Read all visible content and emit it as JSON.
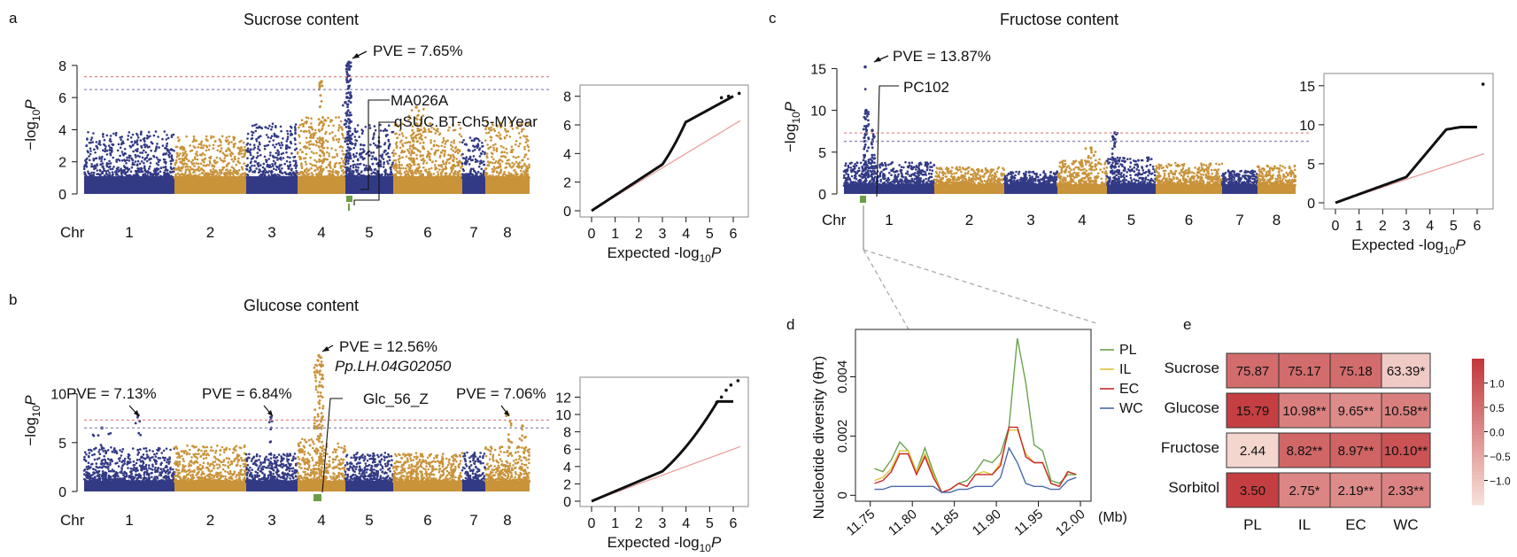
{
  "colors": {
    "navy": "#333a85",
    "gold": "#c9933a",
    "red_line": "#e48a8a",
    "blue_line": "#8a8ab8",
    "green": "#6a9e45",
    "qq_ref": "#e8a0a0"
  },
  "panels": {
    "a": {
      "letter": "a",
      "title": "Sucrose content",
      "pve_main": "PVE = 7.65%",
      "label_marker": "MA026A",
      "label_qtl": "qSUC.BT-Ch5-MYear"
    },
    "b": {
      "letter": "b",
      "title": "Glucose content",
      "pve_main": "PVE = 12.56%",
      "gene": "Pp.LH.04G02050",
      "label_marker": "Glc_56_Z",
      "pve_chr1": "PVE = 7.13%",
      "pve_chr3": "PVE = 6.84%",
      "pve_chr8": "PVE = 7.06%"
    },
    "c": {
      "letter": "c",
      "title": "Fructose content",
      "pve_main": "PVE = 13.87%",
      "label_marker": "PC102"
    },
    "d": {
      "letter": "d"
    },
    "e": {
      "letter": "e"
    }
  },
  "axis_text": {
    "chr": "Chr",
    "ylabel_prefix": "−log",
    "ylabel_sub": "10",
    "ylabel_p": "P",
    "qq_xlabel_prefix": "Expected -log",
    "qq_xlabel_sub": "10",
    "qq_xlabel_p": "P"
  },
  "chart_data": [
    {
      "id": "manhattan_sucrose",
      "type": "scatter",
      "title": "Sucrose content",
      "xlabel": "Chr",
      "ylabel": "−log10P",
      "chromosomes": [
        "1",
        "2",
        "3",
        "4",
        "5",
        "6",
        "7",
        "8"
      ],
      "ylim": [
        0,
        8.6
      ],
      "yticks": [
        0,
        2,
        4,
        6,
        8
      ],
      "thresholds": [
        7.3,
        6.5
      ],
      "peak": {
        "chr": "5",
        "value": 8.2,
        "pve": "PVE = 7.65%"
      }
    },
    {
      "id": "qq_sucrose",
      "type": "line",
      "xlim": [
        0,
        6.3
      ],
      "ylim": [
        0,
        8.6
      ],
      "xticks": [
        0,
        1,
        2,
        3,
        4,
        5,
        6
      ],
      "yticks": [
        0,
        2,
        4,
        6,
        8
      ],
      "max_observed": 8.2,
      "xlabel": "Expected -log10P"
    },
    {
      "id": "manhattan_glucose",
      "type": "scatter",
      "title": "Glucose content",
      "xlabel": "Chr",
      "ylabel": "−log10P",
      "chromosomes": [
        "1",
        "2",
        "3",
        "4",
        "5",
        "6",
        "7",
        "8"
      ],
      "ylim": [
        0,
        14.5
      ],
      "yticks": [
        0,
        5,
        10
      ],
      "thresholds": [
        7.3,
        6.5
      ],
      "peak": {
        "chr": "4",
        "value": 13.9,
        "pve": "PVE = 12.56%"
      },
      "secondary_peaks": [
        {
          "chr": "1",
          "value": 7.8
        },
        {
          "chr": "3",
          "value": 7.6
        },
        {
          "chr": "8",
          "value": 7.9
        }
      ]
    },
    {
      "id": "qq_glucose",
      "type": "line",
      "xlim": [
        0,
        6.3
      ],
      "ylim": [
        0,
        14.5
      ],
      "xticks": [
        0,
        1,
        2,
        3,
        4,
        5,
        6
      ],
      "yticks": [
        0,
        2,
        4,
        6,
        8,
        10,
        12
      ],
      "max_observed": 14,
      "xlabel": "Expected -log10P"
    },
    {
      "id": "manhattan_fructose",
      "type": "scatter",
      "title": "Fructose content",
      "xlabel": "Chr",
      "ylabel": "−log10P",
      "chromosomes": [
        "1",
        "2",
        "3",
        "4",
        "5",
        "6",
        "7",
        "8"
      ],
      "ylim": [
        0,
        16
      ],
      "yticks": [
        0,
        5,
        10,
        15
      ],
      "thresholds": [
        7.3,
        6.3
      ],
      "peak": {
        "chr": "1",
        "value": 15.2,
        "pve": "PVE = 13.87%"
      }
    },
    {
      "id": "qq_fructose",
      "type": "line",
      "xlim": [
        0,
        6.3
      ],
      "ylim": [
        0,
        16
      ],
      "xticks": [
        0,
        1,
        2,
        3,
        4,
        5,
        6
      ],
      "yticks": [
        0,
        5,
        10,
        15
      ],
      "max_observed": 15.2,
      "xlabel": "Expected -log10P"
    },
    {
      "id": "nucleotide_diversity",
      "type": "line",
      "xlabel": "(Mb)",
      "ylabel": "Nucleotide diversity (θπ)",
      "x": [
        11.755,
        11.765,
        11.775,
        11.785,
        11.795,
        11.805,
        11.815,
        11.825,
        11.835,
        11.845,
        11.855,
        11.865,
        11.875,
        11.885,
        11.895,
        11.905,
        11.915,
        11.925,
        11.935,
        11.945,
        11.955,
        11.965,
        11.975,
        11.985,
        11.995
      ],
      "xticks": [
        "11.75",
        "11.80",
        "11.85",
        "11.90",
        "11.95",
        "12.00"
      ],
      "xlim": [
        11.745,
        12.0
      ],
      "yticks": [
        "0",
        "0.002",
        "0.004"
      ],
      "ylim": [
        -0.0002,
        0.0056
      ],
      "series": [
        {
          "name": "PL",
          "color": "#6aa24f",
          "values": [
            0.0009,
            0.0008,
            0.0012,
            0.0018,
            0.0015,
            0.0008,
            0.0016,
            0.0008,
            0.0001,
            0.0002,
            0.0004,
            0.0005,
            0.0008,
            0.0012,
            0.0011,
            0.0014,
            0.0023,
            0.0053,
            0.0038,
            0.0017,
            0.0015,
            0.0005,
            0.0004,
            0.0007,
            0.0007
          ]
        },
        {
          "name": "IL",
          "color": "#dcc33a",
          "values": [
            0.0005,
            0.0006,
            0.0009,
            0.0015,
            0.0015,
            0.0008,
            0.0014,
            0.0007,
            0.0001,
            0.0002,
            0.0004,
            0.0003,
            0.0007,
            0.0008,
            0.0007,
            0.0011,
            0.0022,
            0.0022,
            0.0014,
            0.0011,
            0.0011,
            0.0004,
            0.0003,
            0.0008,
            0.0007
          ]
        },
        {
          "name": "EC",
          "color": "#c8282a",
          "values": [
            0.0004,
            0.0005,
            0.0008,
            0.0014,
            0.0014,
            0.0007,
            0.0013,
            0.0006,
            0.0001,
            0.0002,
            0.0004,
            0.0003,
            0.0007,
            0.0007,
            0.0007,
            0.001,
            0.0023,
            0.0023,
            0.0013,
            0.0011,
            0.0011,
            0.0004,
            0.0003,
            0.0008,
            0.0007
          ]
        },
        {
          "name": "WC",
          "color": "#4a6aa8",
          "values": [
            0.0002,
            0.0002,
            0.0003,
            0.0003,
            0.0003,
            0.0003,
            0.0003,
            0.0003,
            0.0001,
            0.0001,
            0.0002,
            0.0002,
            0.0003,
            0.0003,
            0.0003,
            0.0006,
            0.0016,
            0.0011,
            0.0004,
            0.0003,
            0.0003,
            0.0002,
            0.0002,
            0.0005,
            0.0006
          ]
        }
      ]
    },
    {
      "id": "heatmap",
      "type": "heatmap",
      "rows": [
        "Sucrose",
        "Glucose",
        "Fructose",
        "Sorbitol"
      ],
      "cols": [
        "PL",
        "IL",
        "EC",
        "WC"
      ],
      "labels": [
        [
          "75.87",
          "75.17",
          "75.18",
          "63.39*"
        ],
        [
          "15.79",
          "10.98**",
          "9.65**",
          "10.58**"
        ],
        [
          "2.44",
          "8.82**",
          "8.97**",
          "10.10**"
        ],
        [
          "3.50",
          "2.75*",
          "2.19**",
          "2.33**"
        ]
      ],
      "values": [
        [
          0.55,
          0.55,
          0.55,
          -1.1
        ],
        [
          1.35,
          0.2,
          0.0,
          0.2
        ],
        [
          -1.3,
          0.65,
          0.7,
          1.0
        ],
        [
          1.35,
          0.1,
          0.0,
          0.15
        ]
      ],
      "scale": {
        "min": -1.5,
        "max": 1.5,
        "ticks": [
          "1.0",
          "0.5",
          "0.0",
          "−0.5",
          "−1.0"
        ],
        "tick_values": [
          1.0,
          0.5,
          0.0,
          -0.5,
          -1.0
        ],
        "low_color": "#f7e1d9",
        "high_color": "#c2363a"
      }
    }
  ]
}
